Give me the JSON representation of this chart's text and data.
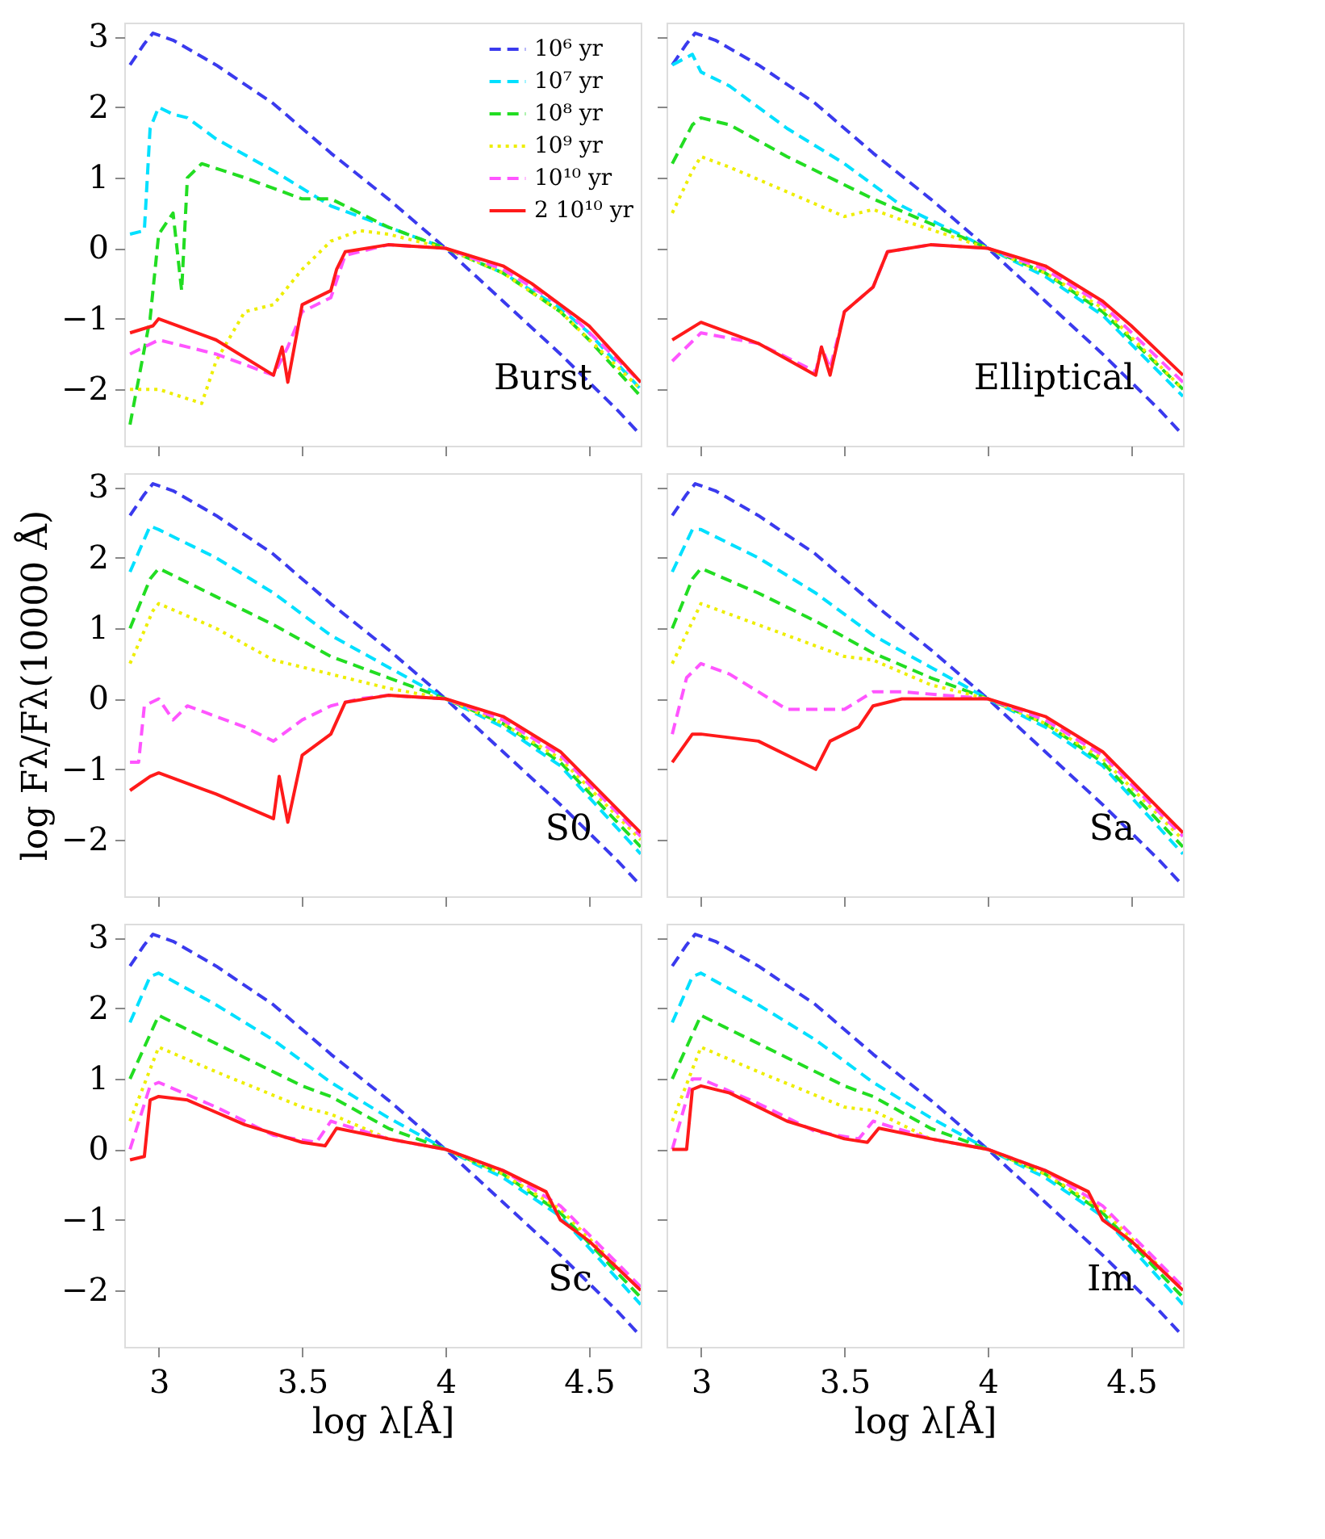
{
  "chart_data": [
    {
      "type": "line",
      "annotations": [
        "Burst"
      ],
      "xlim": [
        2.88,
        4.68
      ],
      "ylim": [
        -2.8,
        3.2
      ],
      "xticks": [
        3,
        3.5,
        4,
        4.5
      ],
      "yticks": [
        -2,
        -1,
        0,
        1,
        2,
        3
      ],
      "tick_labels": "y",
      "grid": false,
      "legend": "top right",
      "series": [
        {
          "name": "10⁶ yr",
          "color": "#3a3aee",
          "line_style": "dashed",
          "x": [
            2.9,
            2.95,
            2.98,
            3.05,
            3.2,
            3.4,
            3.6,
            3.8,
            4.0,
            4.2,
            4.4,
            4.6,
            4.68
          ],
          "values": [
            2.6,
            2.9,
            3.05,
            2.95,
            2.6,
            2.05,
            1.35,
            0.7,
            0,
            -0.75,
            -1.5,
            -2.3,
            -2.65
          ]
        },
        {
          "name": "10⁷ yr",
          "color": "#00e0ff",
          "line_style": "dashed",
          "x": [
            2.9,
            2.95,
            2.97,
            3.0,
            3.05,
            3.1,
            3.2,
            3.4,
            3.6,
            3.8,
            4.0,
            4.2,
            4.4,
            4.5,
            4.68
          ],
          "values": [
            0.2,
            0.25,
            1.7,
            2.0,
            1.9,
            1.85,
            1.55,
            1.1,
            0.6,
            0.3,
            0,
            -0.35,
            -0.85,
            -1.2,
            -2.0
          ]
        },
        {
          "name": "10⁸ yr",
          "color": "#22dd22",
          "line_style": "dashed",
          "x": [
            2.9,
            2.97,
            3.0,
            3.05,
            3.08,
            3.1,
            3.15,
            3.3,
            3.5,
            3.6,
            3.8,
            4.0,
            4.2,
            4.4,
            4.5,
            4.68
          ],
          "values": [
            -2.5,
            -1.0,
            0.2,
            0.5,
            -0.6,
            1.0,
            1.2,
            1.0,
            0.7,
            0.7,
            0.3,
            0,
            -0.35,
            -0.9,
            -1.3,
            -2.1
          ]
        },
        {
          "name": "10⁹ yr",
          "color": "#eeee00",
          "line_style": "dotted",
          "x": [
            2.9,
            3.0,
            3.15,
            3.2,
            3.3,
            3.4,
            3.5,
            3.6,
            3.7,
            3.8,
            4.0,
            4.2,
            4.4,
            4.68
          ],
          "values": [
            -2.0,
            -2.0,
            -2.2,
            -1.6,
            -0.9,
            -0.8,
            -0.3,
            0.1,
            0.25,
            0.2,
            0,
            -0.35,
            -0.9,
            -2.0
          ]
        },
        {
          "name": "10¹⁰ yr",
          "color": "#ff55ff",
          "line_style": "dashed",
          "x": [
            2.9,
            3.0,
            3.2,
            3.4,
            3.45,
            3.5,
            3.6,
            3.65,
            3.8,
            4.0,
            4.2,
            4.4,
            4.68
          ],
          "values": [
            -1.5,
            -1.3,
            -1.5,
            -1.8,
            -1.4,
            -0.9,
            -0.7,
            -0.1,
            0.05,
            0,
            -0.3,
            -0.8,
            -1.9
          ]
        },
        {
          "name": "2 10¹⁰ yr",
          "color": "#ff1a1a",
          "line_style": "solid",
          "x": [
            2.9,
            2.98,
            3.0,
            3.2,
            3.4,
            3.43,
            3.45,
            3.5,
            3.6,
            3.62,
            3.65,
            3.8,
            4.0,
            4.2,
            4.3,
            4.4,
            4.5,
            4.68
          ],
          "values": [
            -1.2,
            -1.1,
            -1.0,
            -1.3,
            -1.8,
            -1.4,
            -1.9,
            -0.8,
            -0.6,
            -0.3,
            -0.05,
            0.05,
            0,
            -0.25,
            -0.5,
            -0.8,
            -1.1,
            -1.9
          ]
        }
      ]
    },
    {
      "type": "line",
      "annotations": [
        "Elliptical"
      ],
      "xlim": [
        2.88,
        4.68
      ],
      "ylim": [
        -2.8,
        3.2
      ],
      "xticks": [
        3,
        3.5,
        4,
        4.5
      ],
      "yticks": [
        -2,
        -1,
        0,
        1,
        2,
        3
      ],
      "tick_labels": false,
      "grid": false,
      "series": [
        {
          "color": "#3a3aee",
          "line_style": "dashed",
          "x": [
            2.9,
            2.95,
            2.98,
            3.05,
            3.2,
            3.4,
            3.6,
            3.8,
            4.0,
            4.2,
            4.4,
            4.6,
            4.68
          ],
          "values": [
            2.6,
            2.9,
            3.05,
            2.95,
            2.6,
            2.05,
            1.35,
            0.7,
            0,
            -0.75,
            -1.5,
            -2.3,
            -2.65
          ]
        },
        {
          "color": "#00e0ff",
          "line_style": "dashed",
          "x": [
            2.9,
            2.97,
            3.0,
            3.1,
            3.3,
            3.5,
            3.7,
            4.0,
            4.2,
            4.4,
            4.68
          ],
          "values": [
            2.6,
            2.75,
            2.5,
            2.3,
            1.7,
            1.2,
            0.6,
            0,
            -0.4,
            -0.95,
            -2.1
          ]
        },
        {
          "color": "#22dd22",
          "line_style": "dashed",
          "x": [
            2.9,
            2.97,
            3.0,
            3.1,
            3.3,
            3.6,
            3.8,
            4.0,
            4.2,
            4.4,
            4.68
          ],
          "values": [
            1.2,
            1.75,
            1.85,
            1.75,
            1.3,
            0.7,
            0.35,
            0,
            -0.35,
            -0.9,
            -2.0
          ]
        },
        {
          "color": "#eeee00",
          "line_style": "dotted",
          "x": [
            2.9,
            2.97,
            3.0,
            3.1,
            3.3,
            3.5,
            3.6,
            3.7,
            4.0,
            4.2,
            4.4,
            4.68
          ],
          "values": [
            0.5,
            1.1,
            1.3,
            1.15,
            0.8,
            0.45,
            0.55,
            0.4,
            0,
            -0.35,
            -0.85,
            -2.0
          ]
        },
        {
          "color": "#ff55ff",
          "line_style": "dashed",
          "x": [
            2.9,
            3.0,
            3.2,
            3.4,
            3.42,
            3.45,
            3.5,
            3.6,
            3.65,
            3.8,
            4.0,
            4.2,
            4.4,
            4.68
          ],
          "values": [
            -1.6,
            -1.2,
            -1.35,
            -1.75,
            -1.4,
            -1.7,
            -0.9,
            -0.55,
            -0.05,
            0.05,
            0,
            -0.3,
            -0.8,
            -1.9
          ]
        },
        {
          "color": "#ff1a1a",
          "line_style": "solid",
          "x": [
            2.9,
            3.0,
            3.2,
            3.4,
            3.42,
            3.45,
            3.5,
            3.6,
            3.65,
            3.8,
            4.0,
            4.2,
            4.4,
            4.5,
            4.68
          ],
          "values": [
            -1.3,
            -1.05,
            -1.35,
            -1.8,
            -1.4,
            -1.8,
            -0.9,
            -0.55,
            -0.05,
            0.05,
            0,
            -0.25,
            -0.75,
            -1.1,
            -1.8
          ]
        }
      ]
    },
    {
      "type": "line",
      "annotations": [
        "S0"
      ],
      "ylabel": "log Fλ/Fλ(10000 Å)",
      "xlim": [
        2.88,
        4.68
      ],
      "ylim": [
        -2.8,
        3.2
      ],
      "xticks": [
        3,
        3.5,
        4,
        4.5
      ],
      "yticks": [
        -2,
        -1,
        0,
        1,
        2,
        3
      ],
      "tick_labels": "y",
      "grid": false,
      "series": [
        {
          "color": "#3a3aee",
          "line_style": "dashed",
          "x": [
            2.9,
            2.95,
            2.98,
            3.05,
            3.2,
            3.4,
            3.6,
            3.8,
            4.0,
            4.2,
            4.4,
            4.6,
            4.68
          ],
          "values": [
            2.6,
            2.9,
            3.05,
            2.95,
            2.6,
            2.05,
            1.35,
            0.7,
            0,
            -0.75,
            -1.5,
            -2.3,
            -2.65
          ]
        },
        {
          "color": "#00e0ff",
          "line_style": "dashed",
          "x": [
            2.9,
            2.97,
            3.0,
            3.2,
            3.4,
            3.6,
            3.8,
            4.0,
            4.2,
            4.4,
            4.68
          ],
          "values": [
            1.8,
            2.45,
            2.4,
            2.0,
            1.5,
            0.9,
            0.45,
            0,
            -0.4,
            -0.95,
            -2.2
          ]
        },
        {
          "color": "#22dd22",
          "line_style": "dashed",
          "x": [
            2.9,
            2.97,
            3.0,
            3.2,
            3.4,
            3.6,
            3.8,
            4.0,
            4.2,
            4.4,
            4.68
          ],
          "values": [
            1.0,
            1.7,
            1.85,
            1.45,
            1.05,
            0.6,
            0.3,
            0,
            -0.35,
            -0.9,
            -2.1
          ]
        },
        {
          "color": "#eeee00",
          "line_style": "dotted",
          "x": [
            2.9,
            2.98,
            3.0,
            3.2,
            3.4,
            3.6,
            3.8,
            4.0,
            4.2,
            4.4,
            4.68
          ],
          "values": [
            0.5,
            1.25,
            1.35,
            1.0,
            0.55,
            0.35,
            0.15,
            0,
            -0.35,
            -0.85,
            -2.0
          ]
        },
        {
          "color": "#ff55ff",
          "line_style": "dashed",
          "x": [
            2.9,
            2.93,
            2.95,
            3.0,
            3.05,
            3.1,
            3.3,
            3.4,
            3.5,
            3.6,
            3.7,
            3.8,
            4.0,
            4.2,
            4.4,
            4.68
          ],
          "values": [
            -0.9,
            -0.9,
            -0.1,
            0.0,
            -0.3,
            -0.1,
            -0.4,
            -0.6,
            -0.3,
            -0.1,
            0.0,
            0.05,
            0,
            -0.3,
            -0.8,
            -1.95
          ]
        },
        {
          "color": "#ff1a1a",
          "line_style": "solid",
          "x": [
            2.9,
            2.97,
            3.0,
            3.2,
            3.4,
            3.42,
            3.45,
            3.5,
            3.6,
            3.65,
            3.8,
            4.0,
            4.2,
            4.4,
            4.68
          ],
          "values": [
            -1.3,
            -1.1,
            -1.05,
            -1.35,
            -1.7,
            -1.1,
            -1.75,
            -0.8,
            -0.5,
            -0.05,
            0.05,
            0,
            -0.25,
            -0.75,
            -1.9
          ]
        }
      ]
    },
    {
      "type": "line",
      "annotations": [
        "Sa"
      ],
      "xlim": [
        2.88,
        4.68
      ],
      "ylim": [
        -2.8,
        3.2
      ],
      "xticks": [
        3,
        3.5,
        4,
        4.5
      ],
      "yticks": [
        -2,
        -1,
        0,
        1,
        2,
        3
      ],
      "tick_labels": false,
      "grid": false,
      "series": [
        {
          "color": "#3a3aee",
          "line_style": "dashed",
          "x": [
            2.9,
            2.95,
            2.98,
            3.05,
            3.2,
            3.4,
            3.6,
            3.8,
            4.0,
            4.2,
            4.4,
            4.6,
            4.68
          ],
          "values": [
            2.6,
            2.9,
            3.05,
            2.95,
            2.6,
            2.05,
            1.35,
            0.7,
            0,
            -0.75,
            -1.5,
            -2.3,
            -2.65
          ]
        },
        {
          "color": "#00e0ff",
          "line_style": "dashed",
          "x": [
            2.9,
            2.97,
            3.0,
            3.2,
            3.4,
            3.6,
            3.8,
            4.0,
            4.2,
            4.4,
            4.68
          ],
          "values": [
            1.8,
            2.4,
            2.4,
            2.0,
            1.5,
            0.9,
            0.45,
            0,
            -0.4,
            -0.95,
            -2.2
          ]
        },
        {
          "color": "#22dd22",
          "line_style": "dashed",
          "x": [
            2.9,
            2.97,
            3.0,
            3.2,
            3.4,
            3.6,
            3.8,
            4.0,
            4.2,
            4.4,
            4.68
          ],
          "values": [
            1.0,
            1.7,
            1.85,
            1.5,
            1.1,
            0.65,
            0.3,
            0,
            -0.35,
            -0.9,
            -2.1
          ]
        },
        {
          "color": "#eeee00",
          "line_style": "dotted",
          "x": [
            2.9,
            3.0,
            3.2,
            3.5,
            3.6,
            3.8,
            4.0,
            4.2,
            4.4,
            4.68
          ],
          "values": [
            0.5,
            1.35,
            1.05,
            0.6,
            0.55,
            0.2,
            0,
            -0.35,
            -0.85,
            -2.0
          ]
        },
        {
          "color": "#ff55ff",
          "line_style": "dashed",
          "x": [
            2.9,
            2.95,
            3.0,
            3.1,
            3.3,
            3.5,
            3.6,
            3.7,
            4.0,
            4.2,
            4.4,
            4.68
          ],
          "values": [
            -0.5,
            0.3,
            0.5,
            0.35,
            -0.15,
            -0.15,
            0.1,
            0.1,
            0,
            -0.3,
            -0.8,
            -1.95
          ]
        },
        {
          "color": "#ff1a1a",
          "line_style": "solid",
          "x": [
            2.9,
            2.97,
            3.0,
            3.2,
            3.35,
            3.4,
            3.45,
            3.55,
            3.6,
            3.7,
            4.0,
            4.2,
            4.4,
            4.68
          ],
          "values": [
            -0.9,
            -0.5,
            -0.5,
            -0.6,
            -0.9,
            -1.0,
            -0.6,
            -0.4,
            -0.1,
            0.0,
            0,
            -0.25,
            -0.75,
            -1.9
          ]
        }
      ]
    },
    {
      "type": "line",
      "annotations": [
        "Sc"
      ],
      "xlabel": "log λ[Å]",
      "xlim": [
        2.88,
        4.68
      ],
      "ylim": [
        -2.8,
        3.2
      ],
      "xticks": [
        3,
        3.5,
        4,
        4.5
      ],
      "yticks": [
        -2,
        -1,
        0,
        1,
        2,
        3
      ],
      "grid": false,
      "series": [
        {
          "color": "#3a3aee",
          "line_style": "dashed",
          "x": [
            2.9,
            2.95,
            2.98,
            3.05,
            3.2,
            3.4,
            3.6,
            3.8,
            4.0,
            4.2,
            4.4,
            4.6,
            4.68
          ],
          "values": [
            2.6,
            2.9,
            3.05,
            2.95,
            2.6,
            2.05,
            1.35,
            0.7,
            0,
            -0.75,
            -1.5,
            -2.3,
            -2.65
          ]
        },
        {
          "color": "#00e0ff",
          "line_style": "dashed",
          "x": [
            2.9,
            2.97,
            3.0,
            3.2,
            3.4,
            3.6,
            3.8,
            4.0,
            4.2,
            4.4,
            4.68
          ],
          "values": [
            1.8,
            2.45,
            2.5,
            2.05,
            1.55,
            0.95,
            0.45,
            0,
            -0.4,
            -0.95,
            -2.2
          ]
        },
        {
          "color": "#22dd22",
          "line_style": "dashed",
          "x": [
            2.9,
            3.0,
            3.1,
            3.3,
            3.5,
            3.6,
            3.8,
            4.0,
            4.2,
            4.4,
            4.68
          ],
          "values": [
            1.0,
            1.9,
            1.7,
            1.3,
            0.9,
            0.75,
            0.3,
            0,
            -0.35,
            -0.9,
            -2.1
          ]
        },
        {
          "color": "#eeee00",
          "line_style": "dotted",
          "x": [
            2.9,
            3.0,
            3.2,
            3.5,
            3.6,
            3.8,
            4.0,
            4.2,
            4.4,
            4.68
          ],
          "values": [
            0.4,
            1.45,
            1.1,
            0.6,
            0.5,
            0.15,
            0,
            -0.35,
            -0.85,
            -2.0
          ]
        },
        {
          "color": "#ff55ff",
          "line_style": "dashed",
          "x": [
            2.9,
            2.97,
            3.0,
            3.2,
            3.4,
            3.55,
            3.6,
            3.8,
            4.0,
            4.2,
            4.4,
            4.68
          ],
          "values": [
            0.0,
            0.9,
            0.95,
            0.6,
            0.2,
            0.1,
            0.4,
            0.15,
            0,
            -0.3,
            -0.8,
            -1.95
          ]
        },
        {
          "color": "#ff1a1a",
          "line_style": "solid",
          "x": [
            2.9,
            2.95,
            2.97,
            3.0,
            3.1,
            3.3,
            3.5,
            3.58,
            3.62,
            3.8,
            4.0,
            4.2,
            4.35,
            4.4,
            4.5,
            4.68
          ],
          "values": [
            -0.15,
            -0.1,
            0.7,
            0.75,
            0.7,
            0.35,
            0.1,
            0.05,
            0.3,
            0.15,
            0,
            -0.3,
            -0.6,
            -1.0,
            -1.3,
            -2.0
          ]
        }
      ]
    },
    {
      "type": "line",
      "annotations": [
        "Im"
      ],
      "xlabel": "log λ[Å]",
      "xlim": [
        2.88,
        4.68
      ],
      "ylim": [
        -2.8,
        3.2
      ],
      "xticks": [
        3,
        3.5,
        4,
        4.5
      ],
      "yticks": [
        -2,
        -1,
        0,
        1,
        2,
        3
      ],
      "tick_labels": "x",
      "grid": false,
      "series": [
        {
          "color": "#3a3aee",
          "line_style": "dashed",
          "x": [
            2.9,
            2.95,
            2.98,
            3.05,
            3.2,
            3.4,
            3.6,
            3.8,
            4.0,
            4.2,
            4.4,
            4.6,
            4.68
          ],
          "values": [
            2.6,
            2.9,
            3.05,
            2.95,
            2.6,
            2.05,
            1.35,
            0.7,
            0,
            -0.75,
            -1.5,
            -2.3,
            -2.65
          ]
        },
        {
          "color": "#00e0ff",
          "line_style": "dashed",
          "x": [
            2.9,
            2.97,
            3.0,
            3.2,
            3.4,
            3.6,
            3.8,
            4.0,
            4.2,
            4.4,
            4.68
          ],
          "values": [
            1.8,
            2.45,
            2.5,
            2.05,
            1.55,
            0.95,
            0.45,
            0,
            -0.4,
            -0.95,
            -2.2
          ]
        },
        {
          "color": "#22dd22",
          "line_style": "dashed",
          "x": [
            2.9,
            3.0,
            3.1,
            3.3,
            3.5,
            3.6,
            3.8,
            4.0,
            4.2,
            4.4,
            4.68
          ],
          "values": [
            1.0,
            1.9,
            1.7,
            1.3,
            0.9,
            0.75,
            0.3,
            0,
            -0.35,
            -0.9,
            -2.1
          ]
        },
        {
          "color": "#eeee00",
          "line_style": "dotted",
          "x": [
            2.9,
            3.0,
            3.2,
            3.5,
            3.6,
            3.8,
            4.0,
            4.2,
            4.4,
            4.68
          ],
          "values": [
            0.4,
            1.45,
            1.1,
            0.6,
            0.55,
            0.15,
            0,
            -0.35,
            -0.85,
            -2.0
          ]
        },
        {
          "color": "#ff55ff",
          "line_style": "dashed",
          "x": [
            2.9,
            2.97,
            3.0,
            3.2,
            3.4,
            3.55,
            3.6,
            3.8,
            4.0,
            4.2,
            4.4,
            4.68
          ],
          "values": [
            0.0,
            1.0,
            1.0,
            0.65,
            0.25,
            0.15,
            0.4,
            0.15,
            0,
            -0.3,
            -0.8,
            -1.95
          ]
        },
        {
          "color": "#ff1a1a",
          "line_style": "solid",
          "x": [
            2.9,
            2.95,
            2.97,
            3.0,
            3.1,
            3.3,
            3.5,
            3.58,
            3.62,
            3.8,
            4.0,
            4.2,
            4.35,
            4.4,
            4.5,
            4.68
          ],
          "values": [
            0.0,
            0.0,
            0.85,
            0.9,
            0.8,
            0.4,
            0.15,
            0.1,
            0.3,
            0.15,
            0,
            -0.3,
            -0.6,
            -1.0,
            -1.3,
            -2.0
          ]
        }
      ]
    }
  ]
}
